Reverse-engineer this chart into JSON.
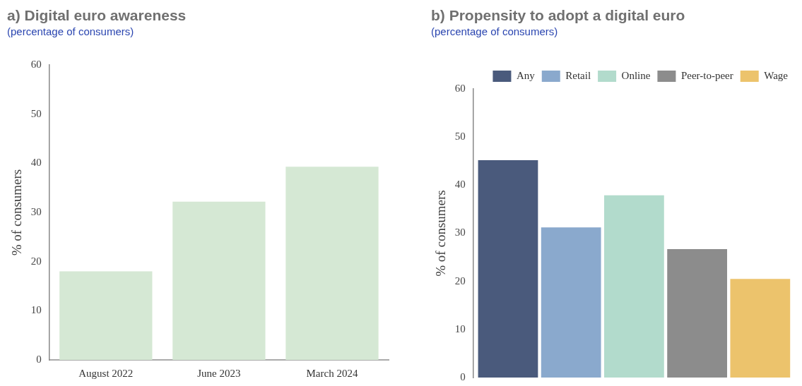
{
  "chart_data": [
    {
      "type": "bar",
      "title": "a) Digital euro awareness",
      "subtitle": "(percentage of consumers)",
      "ylabel": "% of consumers",
      "categories": [
        "August 2022",
        "June 2023",
        "March 2024"
      ],
      "values": [
        18.0,
        32.2,
        39.3
      ],
      "color": "#d5e8d4",
      "ylim": [
        0,
        60
      ],
      "yticks": [
        0,
        10,
        20,
        30,
        40,
        50,
        60
      ],
      "grid": false,
      "legend": false
    },
    {
      "type": "bar",
      "title": "b) Propensity to adopt a digital euro",
      "subtitle": "(percentage of consumers)",
      "ylabel": "% of consumers",
      "categories": [
        null
      ],
      "series": [
        {
          "name": "Any",
          "color": "#4a5a7c",
          "values": [
            45.2
          ]
        },
        {
          "name": "Retail",
          "color": "#8aa9cd",
          "values": [
            31.2
          ]
        },
        {
          "name": "Online",
          "color": "#b2dbcc",
          "values": [
            37.9
          ]
        },
        {
          "name": "Peer-to-peer",
          "color": "#8c8c8c",
          "values": [
            26.7
          ]
        },
        {
          "name": "Wage",
          "color": "#ecc36c",
          "values": [
            20.5
          ]
        }
      ],
      "ylim": [
        0,
        60
      ],
      "yticks": [
        0,
        10,
        20,
        30,
        40,
        50,
        60
      ],
      "grid": false,
      "legend": "top",
      "tick_labels": "y"
    }
  ]
}
